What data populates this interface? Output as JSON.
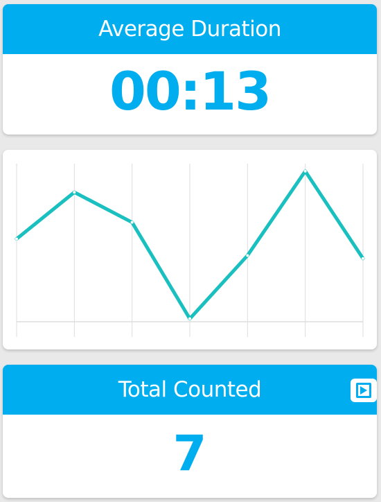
{
  "colors": {
    "accent": "#00aeef",
    "line": "#1abfbf",
    "grid": "#dddddd",
    "background": "#e9e9e9"
  },
  "average_duration": {
    "title": "Average Duration",
    "value": "00:13"
  },
  "total_counted": {
    "title": "Total Counted",
    "value": "7",
    "play_icon": "play-icon"
  },
  "chart_data": {
    "type": "line",
    "x": [
      0,
      1,
      2,
      3,
      4,
      5,
      6
    ],
    "series": [
      {
        "values": [
          0.55,
          0.86,
          0.66,
          0.02,
          0.44,
          1.0,
          0.42
        ]
      }
    ],
    "ylim": [
      0,
      1.05
    ],
    "grid": true,
    "legend": "none"
  }
}
